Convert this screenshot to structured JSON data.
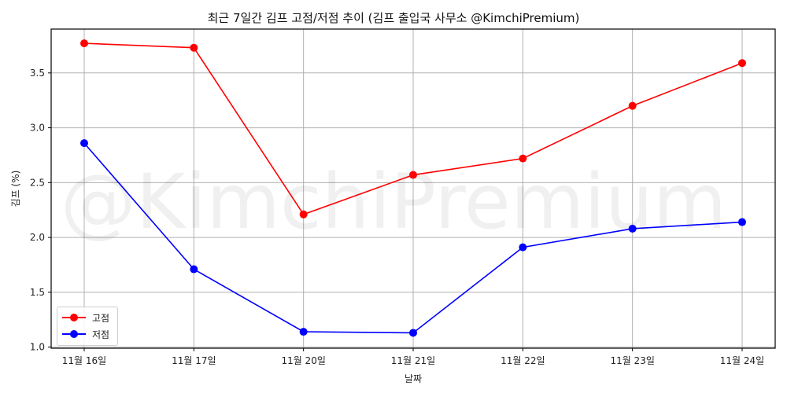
{
  "chart_data": {
    "type": "line",
    "title": "최근 7일간 김프 고점/저점 추이 (김프 출입국 사무소 @KimchiPremium)",
    "xlabel": "날짜",
    "ylabel": "김프 (%)",
    "categories": [
      "11월 16일",
      "11월 17일",
      "11월 20일",
      "11월 21일",
      "11월 22일",
      "11월 23일",
      "11월 24일"
    ],
    "series": [
      {
        "name": "고점",
        "color": "#ff0000",
        "marker": "circle",
        "values": [
          3.77,
          3.73,
          2.21,
          2.57,
          2.72,
          3.2,
          3.59
        ]
      },
      {
        "name": "저점",
        "color": "#0000ff",
        "marker": "circle",
        "values": [
          2.86,
          1.71,
          1.14,
          1.13,
          1.91,
          2.08,
          2.14
        ]
      }
    ],
    "ylim": [
      0.99,
      3.9
    ],
    "yticks": [
      1.0,
      1.5,
      2.0,
      2.5,
      3.0,
      3.5
    ],
    "ytick_labels": [
      "1.0",
      "1.5",
      "2.0",
      "2.5",
      "3.0",
      "3.5"
    ],
    "grid": true,
    "legend_position": "lower left",
    "watermark": "@KimchiPremium"
  }
}
